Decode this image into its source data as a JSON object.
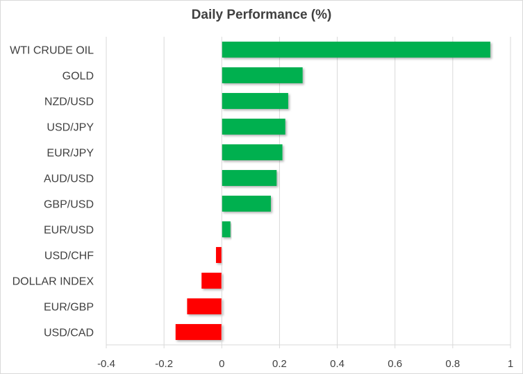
{
  "chart_data": {
    "type": "bar",
    "orientation": "horizontal",
    "title": "Daily Performance (%)",
    "xlabel": "",
    "ylabel": "",
    "categories": [
      "WTI CRUDE OIL",
      "GOLD",
      "NZD/USD",
      "USD/JPY",
      "EUR/JPY",
      "AUD/USD",
      "GBP/USD",
      "EUR/USD",
      "USD/CHF",
      "DOLLAR INDEX",
      "EUR/GBP",
      "USD/CAD"
    ],
    "values": [
      0.93,
      0.28,
      0.23,
      0.22,
      0.21,
      0.19,
      0.17,
      0.03,
      -0.02,
      -0.07,
      -0.12,
      -0.16
    ],
    "xlim": [
      -0.4,
      1
    ],
    "ticks": [
      -0.4,
      -0.2,
      0,
      0.2,
      0.4,
      0.6,
      0.8,
      1
    ],
    "tick_labels": [
      "-0.4",
      "-0.2",
      "0",
      "0.2",
      "0.4",
      "0.6",
      "0.8",
      "1"
    ],
    "grid": "vertical",
    "legend": "none",
    "colors": {
      "positive": "#00b050",
      "negative": "#ff0000",
      "grid": "#d9d9d9",
      "text": "#404040"
    }
  }
}
